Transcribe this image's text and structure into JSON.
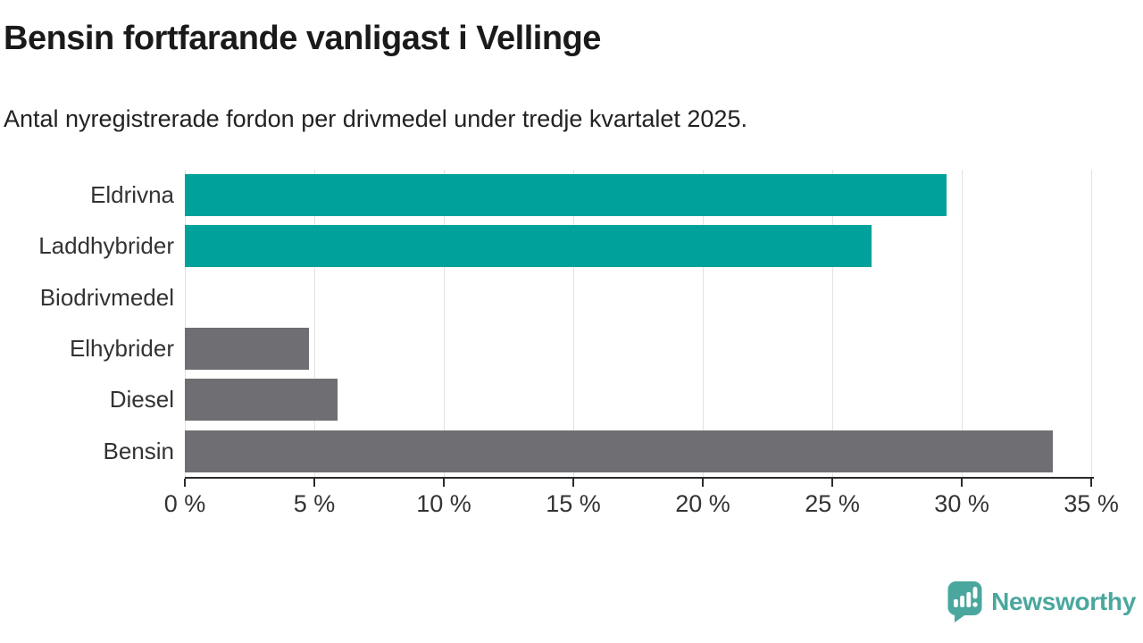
{
  "header": {
    "title": "Bensin fortfarande vanligast i Vellinge",
    "subtitle": "Antal nyregistrerade fordon per drivmedel under tredje kvartalet 2025."
  },
  "chart_data": {
    "type": "bar",
    "orientation": "horizontal",
    "title": "Bensin fortfarande vanligast i Vellinge",
    "subtitle": "Antal nyregistrerade fordon per drivmedel under tredje kvartalet 2025.",
    "categories": [
      "Eldrivna",
      "Laddhybrider",
      "Biodrivmedel",
      "Elhybrider",
      "Diesel",
      "Bensin"
    ],
    "values": [
      29.4,
      26.5,
      0,
      4.8,
      5.9,
      33.5
    ],
    "unit": "%",
    "xlabel": "",
    "ylabel": "",
    "xlim": [
      0,
      35.1
    ],
    "xticks": [
      0,
      5,
      10,
      15,
      20,
      25,
      30,
      35
    ],
    "xtick_labels": [
      "0 %",
      "5 %",
      "10 %",
      "15 %",
      "20 %",
      "25 %",
      "30 %",
      "35 %"
    ],
    "grid": true,
    "legend": false,
    "bar_colors": [
      "#00a19a",
      "#00a19a",
      "#6e6e73",
      "#6e6e73",
      "#6e6e73",
      "#6e6e73"
    ],
    "highlight_color": "#00a19a",
    "default_color": "#6e6e73",
    "gridline_color": "#e2e2e2",
    "axis_color": "#2b2b2b"
  },
  "footer": {
    "brand": "Newsworthy",
    "brand_color": "#4aa79e"
  }
}
